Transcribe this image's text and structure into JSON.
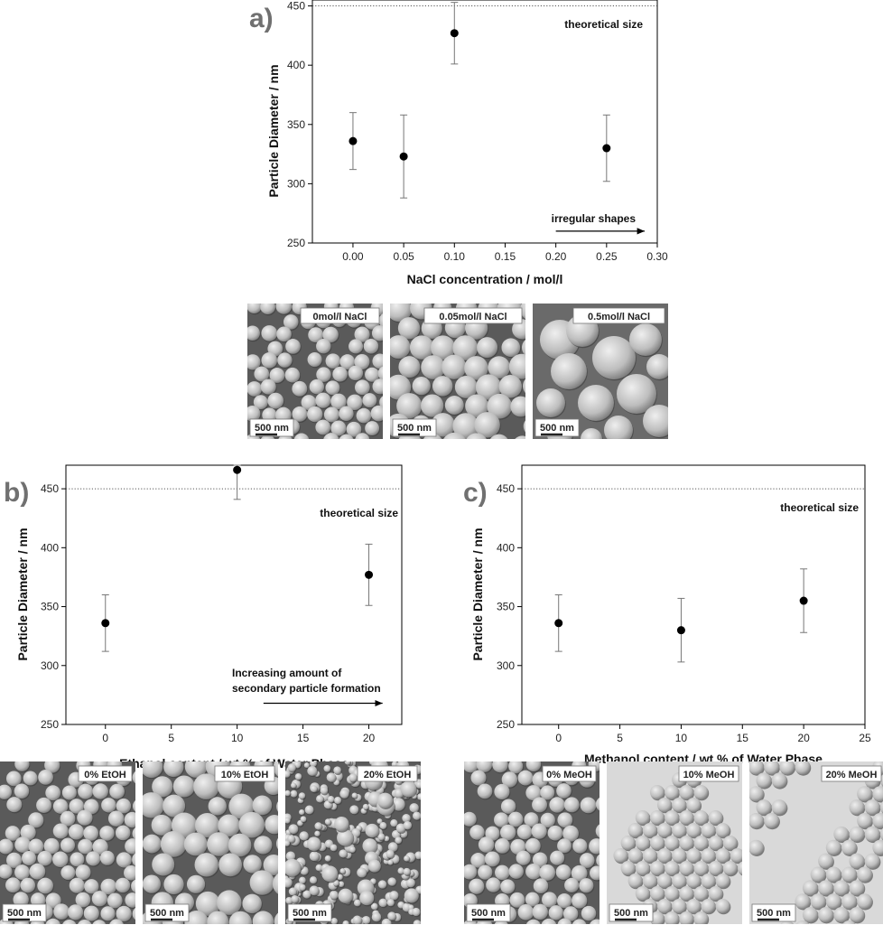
{
  "chart_data": [
    {
      "panel_label": "a)",
      "type": "scatter",
      "xlabel": "NaCl concentration / mol/l",
      "ylabel": "Particle Diameter / nm",
      "xlim": [
        -0.04,
        0.3
      ],
      "ylim": [
        250,
        455
      ],
      "xticks": [
        0.0,
        0.05,
        0.1,
        0.15,
        0.2,
        0.25,
        0.3
      ],
      "xtick_labels": [
        "0.00",
        "0.05",
        "0.10",
        "0.15",
        "0.20",
        "0.25",
        "0.30"
      ],
      "yticks": [
        250,
        300,
        350,
        400,
        450
      ],
      "ytick_labels": [
        "250",
        "300",
        "350",
        "400",
        "450"
      ],
      "points": [
        {
          "x": 0.0,
          "y": 336,
          "err_low": 312,
          "err_high": 360
        },
        {
          "x": 0.05,
          "y": 323,
          "err_low": 288,
          "err_high": 358
        },
        {
          "x": 0.1,
          "y": 427,
          "err_low": 401,
          "err_high": 453
        },
        {
          "x": 0.25,
          "y": 330,
          "err_low": 302,
          "err_high": 358
        }
      ],
      "reference_line": {
        "y": 450,
        "label": "theoretical size"
      },
      "annotation": {
        "text": "irregular shapes",
        "arrow_from_x": 0.2,
        "arrow_to_x": 0.3,
        "arrow_y": 260
      },
      "grid": false,
      "micrographs": [
        {
          "label": "0mol/l NaCl",
          "scale": "500 nm",
          "style": "medium"
        },
        {
          "label": "0.05mol/l NaCl",
          "scale": "500 nm",
          "style": "large"
        },
        {
          "label": "0.5mol/l NaCl",
          "scale": "500 nm",
          "style": "irregular"
        }
      ]
    },
    {
      "panel_label": "b)",
      "type": "scatter",
      "xlabel": "Ethanol content / wt  % of Water Phase",
      "ylabel": "Particle Diameter / nm",
      "xlim": [
        -3,
        22.5
      ],
      "ylim": [
        250,
        470
      ],
      "xticks": [
        0,
        5,
        10,
        15,
        20
      ],
      "xtick_labels": [
        "0",
        "5",
        "10",
        "15",
        "20"
      ],
      "yticks": [
        250,
        300,
        350,
        400,
        450
      ],
      "ytick_labels": [
        "250",
        "300",
        "350",
        "400",
        "450"
      ],
      "points": [
        {
          "x": 0,
          "y": 336,
          "err_low": 312,
          "err_high": 360
        },
        {
          "x": 10,
          "y": 466,
          "err_low": 441,
          "err_high": 470
        },
        {
          "x": 20,
          "y": 377,
          "err_low": 351,
          "err_high": 403
        }
      ],
      "reference_line": {
        "y": 450,
        "label": "theoretical size"
      },
      "annotation": {
        "text_lines": [
          "Increasing amount of",
          "secondary particle formation"
        ],
        "arrow_from_x": 12,
        "arrow_to_x": 22,
        "arrow_y": 268
      },
      "grid": false,
      "micrographs": [
        {
          "label": "0% EtOH",
          "scale": "500 nm",
          "style": "medium"
        },
        {
          "label": "10% EtOH",
          "scale": "500 nm",
          "style": "large"
        },
        {
          "label": "20% EtOH",
          "scale": "500 nm",
          "style": "mixed"
        }
      ]
    },
    {
      "panel_label": "c)",
      "type": "scatter",
      "xlabel": "Methanol content / wt  % of Water Phase",
      "ylabel": "Particle Diameter / nm",
      "xlim": [
        -3,
        25
      ],
      "ylim": [
        250,
        470
      ],
      "xticks": [
        0,
        5,
        10,
        15,
        20,
        25
      ],
      "xtick_labels": [
        "0",
        "5",
        "10",
        "15",
        "20",
        "25"
      ],
      "yticks": [
        250,
        300,
        350,
        400,
        450
      ],
      "ytick_labels": [
        "250",
        "300",
        "350",
        "400",
        "450"
      ],
      "points": [
        {
          "x": 0,
          "y": 336,
          "err_low": 312,
          "err_high": 360
        },
        {
          "x": 10,
          "y": 330,
          "err_low": 303,
          "err_high": 357
        },
        {
          "x": 20,
          "y": 355,
          "err_low": 328,
          "err_high": 382
        }
      ],
      "reference_line": {
        "y": 450,
        "label": "theoretical size"
      },
      "grid": false,
      "micrographs": [
        {
          "label": "0% MeOH",
          "scale": "500 nm",
          "style": "medium"
        },
        {
          "label": "10% MeOH",
          "scale": "500 nm",
          "style": "cluster"
        },
        {
          "label": "20% MeOH",
          "scale": "500 nm",
          "style": "chains"
        }
      ]
    }
  ]
}
